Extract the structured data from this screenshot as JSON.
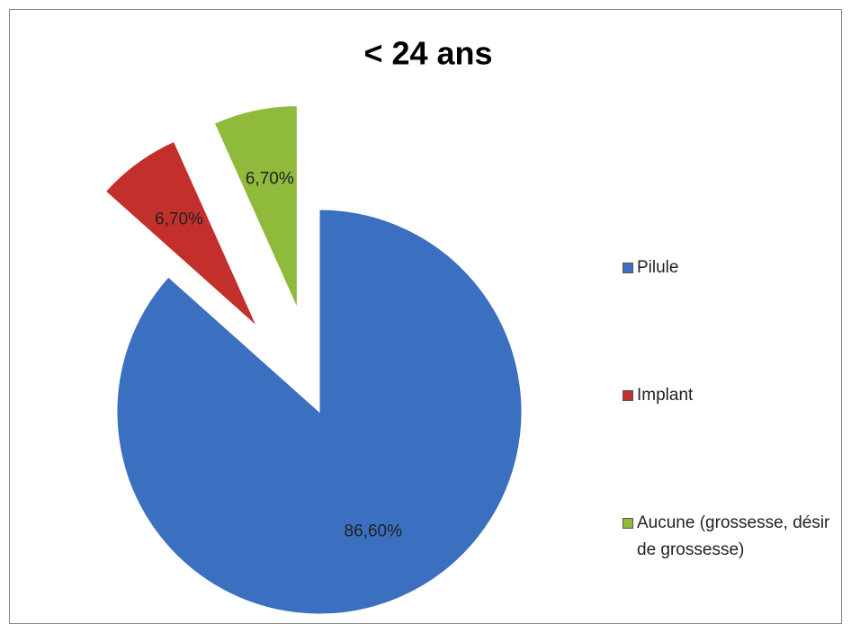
{
  "chart_data": {
    "type": "pie",
    "title": "< 24 ans",
    "categories": [
      "Pilule",
      "Implant",
      "Aucune (grossesse, désir de grossesse)"
    ],
    "values": [
      86.6,
      6.7,
      6.7
    ],
    "value_labels": [
      "86,60%",
      "6,70%",
      "6,70%"
    ],
    "colors": [
      "#3b6fbf",
      "#c3302b",
      "#8fba3c"
    ],
    "exploded": [
      false,
      true,
      true
    ],
    "legend": "right"
  }
}
